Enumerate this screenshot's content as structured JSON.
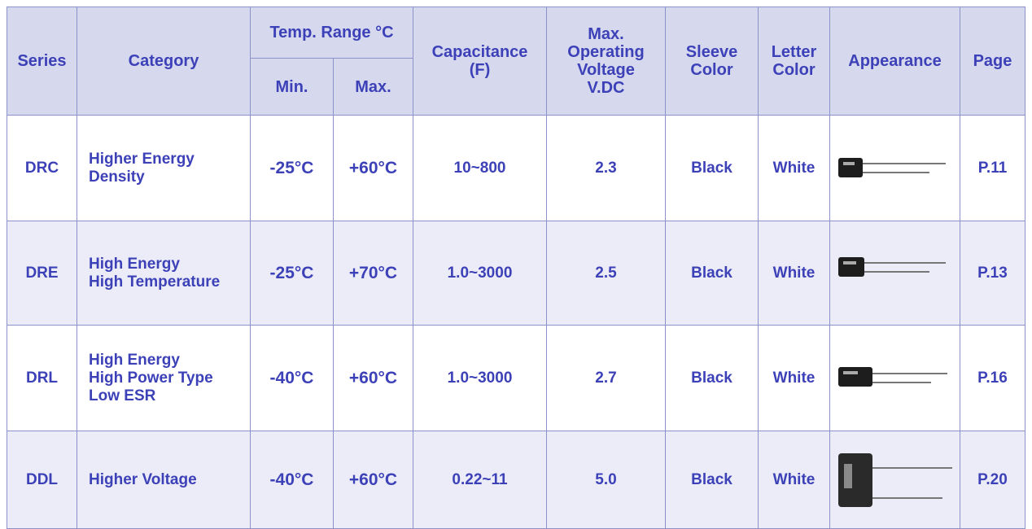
{
  "table": {
    "header": {
      "series": "Series",
      "category": "Category",
      "temp_range": "Temp. Range °C",
      "min": "Min.",
      "max": "Max.",
      "capacitance": [
        "Capacitance",
        "(F)"
      ],
      "voltage": [
        "Max.",
        "Operating",
        "Voltage",
        "V.DC"
      ],
      "sleeve": [
        "Sleeve",
        "Color"
      ],
      "letter": [
        "Letter",
        "Color"
      ],
      "appearance": "Appearance",
      "page": "Page"
    },
    "rows": [
      {
        "series": "DRC",
        "category": [
          "Higher Energy",
          "Density"
        ],
        "min": "-25°C",
        "max": "+60°C",
        "capacitance": "10~800",
        "voltage": "2.3",
        "sleeve": "Black",
        "letter": "White",
        "page": "P.11"
      },
      {
        "series": "DRE",
        "category": [
          "High Energy",
          "High Temperature"
        ],
        "min": "-25°C",
        "max": "+70°C",
        "capacitance": "1.0~3000",
        "voltage": "2.5",
        "sleeve": "Black",
        "letter": "White",
        "page": "P.13"
      },
      {
        "series": "DRL",
        "category": [
          "High Energy",
          "High Power Type",
          "Low ESR"
        ],
        "min": "-40°C",
        "max": "+60°C",
        "capacitance": "1.0~3000",
        "voltage": "2.7",
        "sleeve": "Black",
        "letter": "White",
        "page": "P.16"
      },
      {
        "series": "DDL",
        "category": [
          "Higher Voltage"
        ],
        "min": "-40°C",
        "max": "+60°C",
        "capacitance": "0.22~11",
        "voltage": "5.0",
        "sleeve": "Black",
        "letter": "White",
        "page": "P.20"
      }
    ]
  }
}
